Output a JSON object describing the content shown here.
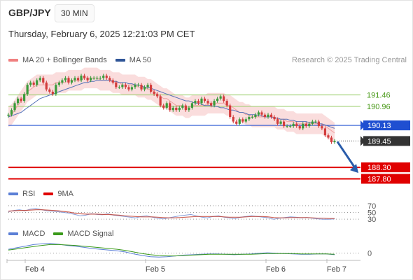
{
  "header": {
    "pair": "GBP/JPY",
    "timeframe": "30 MIN",
    "datetime": "Thursday, February 6, 2025 12:21:03 PM CET"
  },
  "legend_main": [
    {
      "label": "MA 20 + Bollinger Bands",
      "color": "#f08080"
    },
    {
      "label": "MA 50",
      "color": "#2f5597"
    }
  ],
  "legend_rsi": [
    {
      "label": "RSI",
      "color": "#5b7fd6"
    },
    {
      "label": "9MA",
      "color": "#e00000"
    }
  ],
  "legend_macd": [
    {
      "label": "MACD",
      "color": "#5b7fd6"
    },
    {
      "label": "MACD Signal",
      "color": "#3a9a1a"
    }
  ],
  "credit": "Research © 2025 Trading Central",
  "colors": {
    "candle_up": "#3a9a3a",
    "candle_down": "#d23c3c",
    "band_fill": "#f9d4d4",
    "ma20": "#f0a0a0",
    "ma50": "#5572b8",
    "green_levels": "#9acd6a",
    "pivot_blue": "#1f4fd1",
    "support_red": "#e00000",
    "arrow": "#2a5caa"
  },
  "chart_data": [
    {
      "type": "candlestick",
      "title": "GBP/JPY 30 MIN",
      "x_tick_labels": [
        "Feb 4",
        "Feb 5",
        "Feb 6",
        "Feb 7"
      ],
      "ylim": [
        187.6,
        192.7
      ],
      "close_series": [
        190.6,
        190.8,
        191.1,
        191.3,
        191.2,
        191.5,
        191.9,
        192.0,
        191.9,
        192.1,
        192.2,
        192.0,
        191.7,
        191.6,
        191.5,
        191.9,
        192.0,
        192.1,
        192.2,
        192.0,
        192.1,
        192.2,
        192.1,
        192.3,
        192.2,
        192.1,
        192.2,
        192.2,
        192.2,
        192.2,
        192.3,
        192.2,
        192.1,
        192.0,
        191.8,
        191.8,
        191.9,
        191.8,
        191.7,
        191.8,
        191.9,
        191.9,
        191.7,
        191.8,
        191.9,
        191.6,
        191.5,
        191.4,
        191.0,
        190.9,
        191.1,
        190.8,
        190.9,
        190.8,
        190.9,
        191.0,
        190.8,
        190.9,
        191.1,
        191.2,
        191.1,
        191.3,
        191.2,
        191.1,
        191.0,
        191.2,
        191.3,
        191.4,
        191.2,
        191.0,
        190.5,
        190.3,
        190.2,
        190.4,
        190.3,
        190.4,
        190.5,
        190.5,
        190.6,
        190.7,
        190.6,
        190.5,
        190.6,
        190.5,
        190.4,
        190.2,
        190.3,
        190.1,
        190.1,
        190.1,
        190.2,
        190.1,
        190.0,
        190.2,
        190.1,
        190.2,
        190.3,
        190.3,
        190.1,
        190.0,
        189.7,
        189.6,
        189.4,
        189.45
      ],
      "ma20": [
        190.5,
        190.6,
        190.8,
        191.0,
        191.2,
        191.4,
        191.6,
        191.7,
        191.8,
        191.9,
        191.9,
        191.9,
        191.9,
        191.9,
        191.9,
        192.0,
        192.0,
        192.0,
        192.0,
        192.1,
        192.1,
        192.1,
        192.1,
        192.1,
        192.2,
        192.2,
        192.2,
        192.2,
        192.2,
        192.1,
        192.1,
        192.1,
        192.1,
        192.0,
        192.0,
        192.0,
        191.9,
        191.9,
        191.9,
        191.9,
        191.9,
        191.8,
        191.8,
        191.8,
        191.7,
        191.7,
        191.6,
        191.5,
        191.4,
        191.3,
        191.3,
        191.2,
        191.1,
        191.0,
        191.0,
        191.0,
        190.9,
        190.9,
        191.0,
        191.0,
        191.0,
        191.0,
        191.0,
        191.1,
        191.1,
        191.1,
        191.1,
        191.1,
        191.1,
        191.0,
        191.0,
        190.9,
        190.8,
        190.7,
        190.7,
        190.6,
        190.6,
        190.5,
        190.5,
        190.5,
        190.5,
        190.5,
        190.5,
        190.5,
        190.5,
        190.4,
        190.4,
        190.4,
        190.3,
        190.3,
        190.3,
        190.2,
        190.2,
        190.2,
        190.2,
        190.2,
        190.2,
        190.2,
        190.2,
        190.2,
        190.1,
        190.0,
        189.9,
        189.8
      ],
      "ma50": [
        190.5,
        190.55,
        190.6,
        190.65,
        190.7,
        190.8,
        190.9,
        191.0,
        191.1,
        191.2,
        191.3,
        191.35,
        191.4,
        191.45,
        191.5,
        191.55,
        191.6,
        191.65,
        191.7,
        191.75,
        191.8,
        191.85,
        191.9,
        191.95,
        192.0,
        192.0,
        192.05,
        192.05,
        192.1,
        192.1,
        192.1,
        192.1,
        192.1,
        192.05,
        192.05,
        192.0,
        192.0,
        192.0,
        191.95,
        191.95,
        191.9,
        191.9,
        191.85,
        191.8,
        191.8,
        191.75,
        191.7,
        191.65,
        191.6,
        191.55,
        191.5,
        191.45,
        191.4,
        191.35,
        191.3,
        191.25,
        191.2,
        191.2,
        191.15,
        191.1,
        191.1,
        191.05,
        191.0,
        191.0,
        191.0,
        190.95,
        190.95,
        190.9,
        190.9,
        190.85,
        190.8,
        190.8,
        190.75,
        190.7,
        190.7,
        190.65,
        190.6,
        190.6,
        190.6,
        190.55,
        190.55,
        190.5,
        190.5,
        190.5,
        190.45,
        190.45,
        190.4,
        190.4,
        190.4,
        190.35,
        190.35,
        190.3,
        190.3,
        190.3,
        190.3,
        190.25,
        190.25,
        190.25,
        190.2,
        190.2,
        190.15,
        190.1,
        190.05,
        190.0
      ],
      "levels": [
        {
          "label": "191.46",
          "value": 191.46,
          "color": "green"
        },
        {
          "label": "190.96",
          "value": 190.96,
          "color": "green"
        },
        {
          "label": "190.13",
          "value": 190.13,
          "color": "blue"
        },
        {
          "label": "189.45",
          "value": 189.45,
          "color": "current"
        },
        {
          "label": "188.30",
          "value": 188.3,
          "color": "red"
        },
        {
          "label": "187.80",
          "value": 187.8,
          "color": "red"
        }
      ],
      "forecast_arrow": {
        "from": 189.45,
        "to": 188.3
      }
    },
    {
      "type": "line",
      "title": "RSI",
      "ylim": [
        20,
        80
      ],
      "reference_levels": [
        {
          "label": "70",
          "value": 70
        },
        {
          "label": "50",
          "value": 50
        },
        {
          "label": "30",
          "value": 30
        }
      ],
      "series": [
        {
          "name": "RSI",
          "values": [
            52,
            56,
            58,
            55,
            60,
            62,
            58,
            55,
            54,
            52,
            50,
            48,
            44,
            40,
            42,
            46,
            44,
            43,
            46,
            42,
            40,
            38,
            36,
            34,
            38,
            40,
            36,
            33,
            31,
            34,
            37,
            40,
            42,
            44,
            40,
            36,
            34,
            38,
            40,
            36,
            34,
            32,
            36,
            38,
            40,
            38,
            36,
            34,
            30,
            33,
            35,
            37,
            36,
            34,
            35,
            33,
            31,
            30,
            30,
            31
          ]
        },
        {
          "name": "9MA",
          "values": [
            54,
            55,
            56,
            56,
            57,
            58,
            58,
            57,
            56,
            55,
            53,
            51,
            48,
            46,
            45,
            45,
            45,
            44,
            44,
            43,
            42,
            40,
            39,
            38,
            37,
            37,
            37,
            36,
            35,
            34,
            34,
            35,
            36,
            37,
            38,
            38,
            38,
            38,
            38,
            37,
            36,
            36,
            36,
            37,
            38,
            38,
            38,
            37,
            35,
            34,
            34,
            35,
            35,
            35,
            35,
            34,
            33,
            33,
            32,
            32
          ]
        }
      ]
    },
    {
      "type": "line",
      "title": "MACD",
      "reference_levels": [
        {
          "label": "0",
          "value": 0
        }
      ],
      "series": [
        {
          "name": "MACD",
          "values": [
            0.1,
            0.14,
            0.18,
            0.22,
            0.24,
            0.25,
            0.23,
            0.2,
            0.18,
            0.15,
            0.12,
            0.1,
            0.08,
            0.06,
            0.03,
            -0.02,
            -0.06,
            -0.09,
            -0.1,
            -0.09,
            -0.07,
            -0.05,
            -0.04,
            -0.03,
            -0.02,
            -0.02,
            -0.03,
            -0.04,
            -0.03,
            -0.02,
            0.0,
            0.01,
            0.0,
            -0.01,
            -0.02,
            -0.03,
            -0.03,
            -0.02,
            -0.02,
            -0.04
          ]
        },
        {
          "name": "MACD Signal",
          "values": [
            0.08,
            0.11,
            0.14,
            0.17,
            0.2,
            0.22,
            0.22,
            0.21,
            0.2,
            0.18,
            0.16,
            0.14,
            0.12,
            0.1,
            0.07,
            0.03,
            -0.01,
            -0.04,
            -0.06,
            -0.07,
            -0.07,
            -0.06,
            -0.05,
            -0.04,
            -0.03,
            -0.03,
            -0.03,
            -0.03,
            -0.03,
            -0.03,
            -0.02,
            -0.01,
            -0.01,
            -0.01,
            -0.01,
            -0.02,
            -0.02,
            -0.02,
            -0.02,
            -0.03
          ]
        }
      ]
    }
  ]
}
